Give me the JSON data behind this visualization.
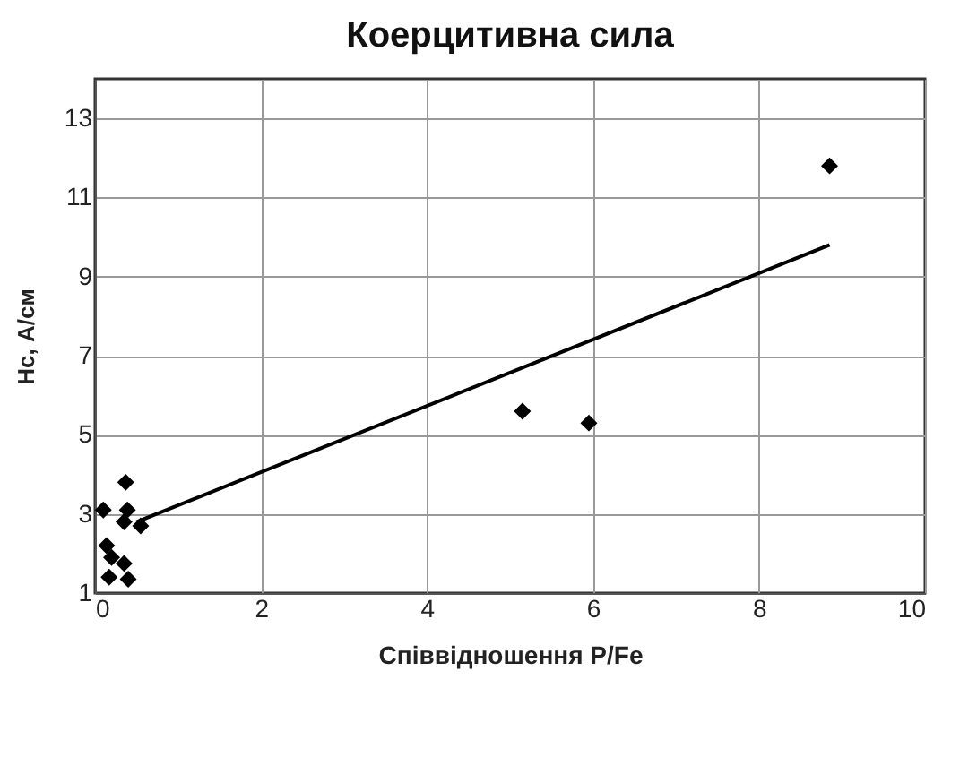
{
  "chart_data": {
    "type": "scatter",
    "title": "Коерцитивна сила",
    "xlabel": "Співвідношення P/Fe",
    "ylabel": "Hc, А/см",
    "xlim": [
      0,
      10
    ],
    "xticks": [
      0,
      2,
      4,
      6,
      8,
      10
    ],
    "ylim": [
      1,
      14
    ],
    "yticks": [
      1,
      3,
      5,
      7,
      9,
      11,
      13
    ],
    "grid": true,
    "series": [
      {
        "marker": "diamond",
        "color": "#000000",
        "x": [
          0.37,
          0.1,
          0.39,
          0.35,
          0.55,
          0.14,
          0.2,
          0.35,
          0.17,
          0.4,
          5.15,
          5.95,
          8.85
        ],
        "values": [
          3.8,
          3.1,
          3.1,
          2.8,
          2.7,
          2.2,
          1.9,
          1.75,
          1.4,
          1.35,
          5.6,
          5.3,
          11.8
        ]
      },
      {
        "type": "line",
        "color": "#000000",
        "x": [
          0.5,
          8.85
        ],
        "values": [
          2.8,
          9.8
        ]
      }
    ]
  }
}
